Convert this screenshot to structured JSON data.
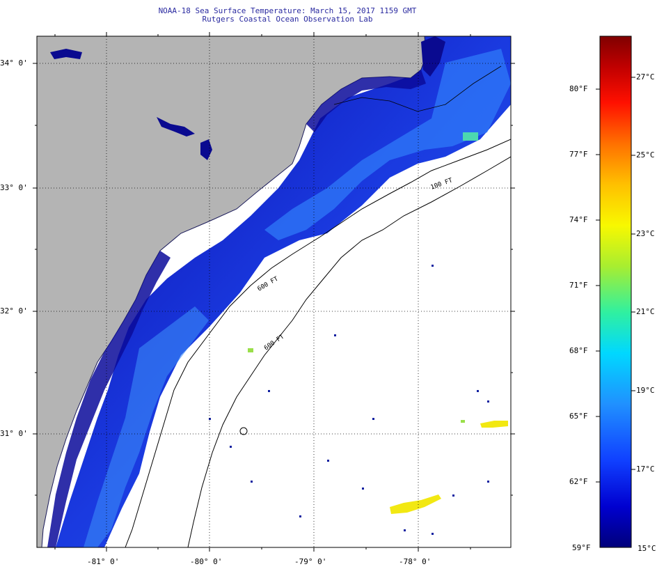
{
  "header": {
    "title": "NOAA-18 Sea Surface Temperature:  March 15, 2017 1159 GMT",
    "subtitle": "Rutgers Coastal Ocean Observation Lab"
  },
  "map": {
    "lat_labels": [
      "34° 0'",
      "33° 0'",
      "32° 0'",
      "31° 0'"
    ],
    "lon_labels": [
      "-81° 0'",
      "-80° 0'",
      "-79° 0'",
      "-78° 0'"
    ],
    "isobath_labels": [
      "100 FT",
      "600 FT",
      "600 FT"
    ],
    "colors": {
      "land": "#b4b4b4",
      "cloud": "#ffffff",
      "coastal_water": "#1430d8",
      "nearshore_water": "#0a0aa0",
      "warm_patch": "#f2e812",
      "warm_patch_edge": "#9adf4a"
    }
  },
  "colorbar": {
    "fahrenheit_labels": [
      "80°F",
      "77°F",
      "74°F",
      "71°F",
      "68°F",
      "65°F",
      "62°F",
      "59°F"
    ],
    "celsius_labels": [
      "27°C",
      "25°C",
      "23°C",
      "21°C",
      "19°C",
      "17°C",
      "15°C"
    ],
    "range_c": [
      15,
      28
    ],
    "colors": [
      "#00007a",
      "#0000d0",
      "#1040ff",
      "#2090ff",
      "#00d8ff",
      "#30f0a0",
      "#a8ee30",
      "#f8f800",
      "#ffc000",
      "#ff7000",
      "#ff1000",
      "#c00000",
      "#800000"
    ]
  }
}
